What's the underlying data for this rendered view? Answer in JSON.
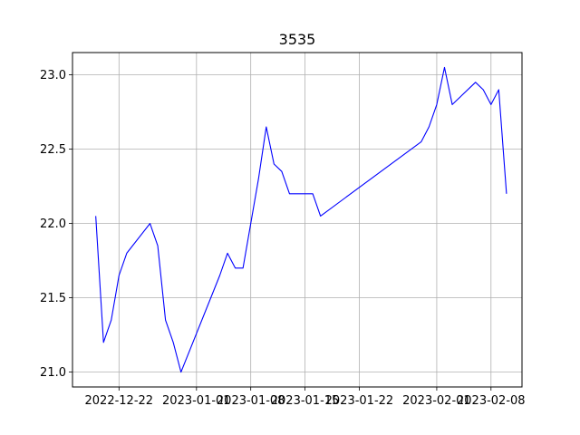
{
  "chart_data": {
    "type": "line",
    "title": "3535",
    "xlabel": "",
    "ylabel": "",
    "grid": true,
    "line_color": "#0000ff",
    "x_ticks": [
      "2022-12-22",
      "2023-01-01",
      "2023-01-08",
      "2023-01-15",
      "2023-01-22",
      "2023-02-01",
      "2023-02-08"
    ],
    "y_ticks": [
      "21.0",
      "21.5",
      "22.0",
      "22.5",
      "23.0"
    ],
    "ylim": [
      20.9,
      23.15
    ],
    "xlim": [
      "2022-12-16",
      "2023-02-12"
    ],
    "series": [
      {
        "x": [
          "2022-12-19",
          "2022-12-20",
          "2022-12-21",
          "2022-12-22",
          "2022-12-23",
          "2022-12-26",
          "2022-12-27",
          "2022-12-28",
          "2022-12-29",
          "2022-12-30",
          "2023-01-04",
          "2023-01-05",
          "2023-01-06",
          "2023-01-07",
          "2023-01-09",
          "2023-01-10",
          "2023-01-11",
          "2023-01-12",
          "2023-01-13",
          "2023-01-16",
          "2023-01-17",
          "2023-01-30",
          "2023-01-31",
          "2023-02-01",
          "2023-02-02",
          "2023-02-03",
          "2023-02-06",
          "2023-02-07",
          "2023-02-08",
          "2023-02-09",
          "2023-02-10"
        ],
        "y": [
          22.05,
          21.2,
          21.35,
          21.65,
          21.8,
          22.0,
          21.85,
          21.35,
          21.2,
          21.0,
          21.65,
          21.8,
          21.7,
          21.7,
          22.3,
          22.65,
          22.4,
          22.35,
          22.2,
          22.2,
          22.05,
          22.55,
          22.65,
          22.8,
          23.05,
          22.8,
          22.95,
          22.9,
          22.8,
          22.9,
          22.2
        ]
      }
    ]
  }
}
